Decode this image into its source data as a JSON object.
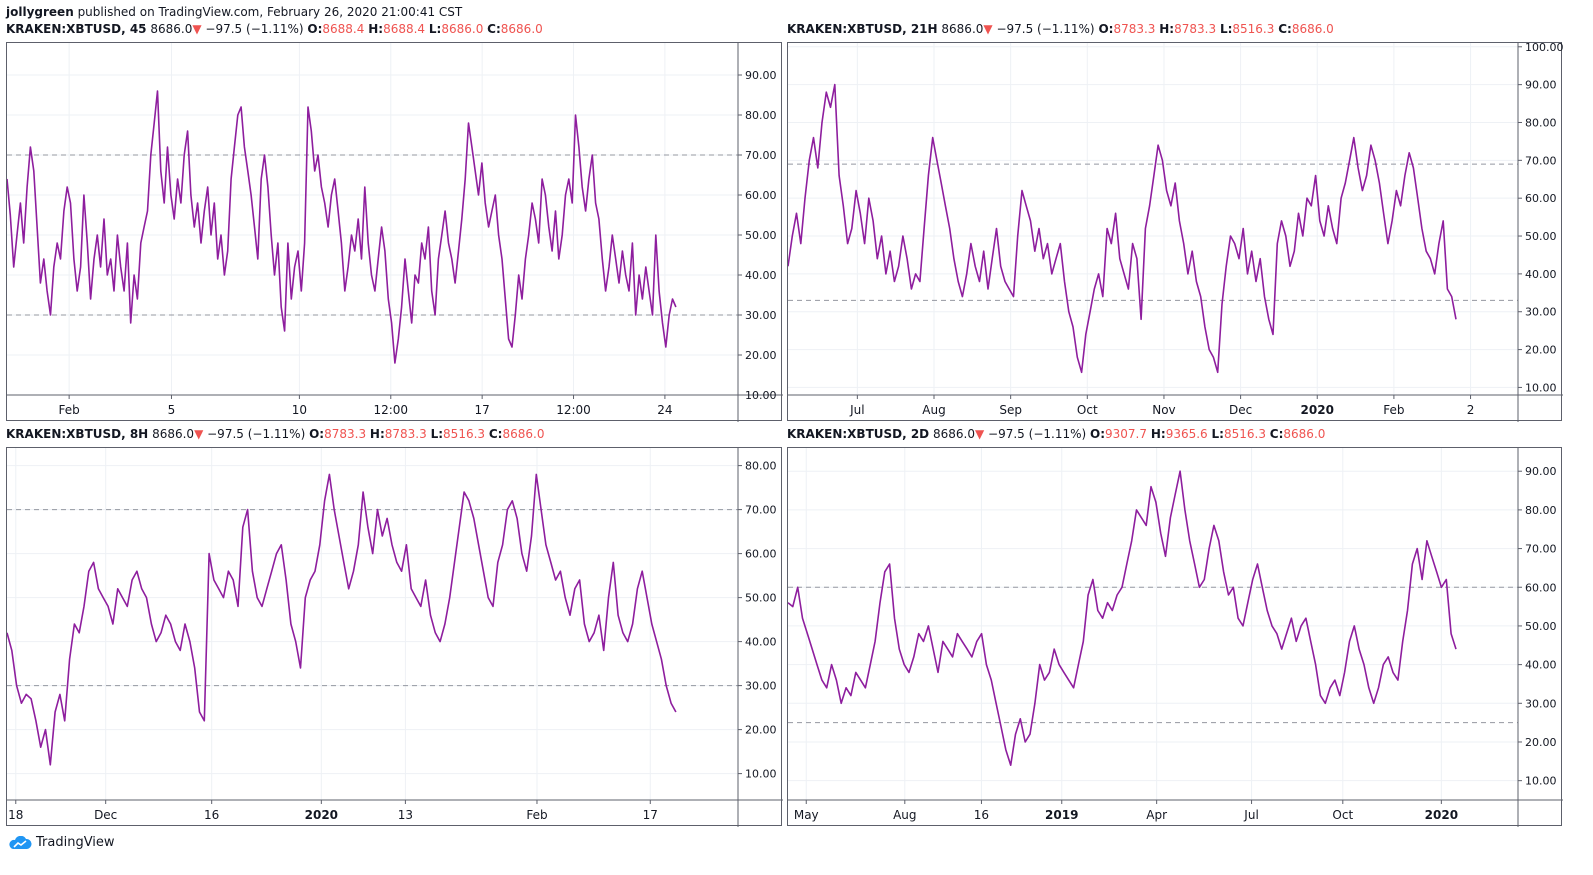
{
  "header": {
    "author": "jollygreen",
    "published": "published on TradingView.com, February 26, 2020 21:00:41 CST"
  },
  "footer": {
    "brand": "TradingView",
    "logo_icon": "tradingview-cloud-icon"
  },
  "colors": {
    "line": "#8e1e9e",
    "down": "#ef5350",
    "grid": "#eef1f5",
    "band": "#9598a1"
  },
  "panes": [
    {
      "symbol": "KRAKEN:XBTUSD, 45",
      "price": "8686.0",
      "change": "−97.5 (−1.11%)",
      "ohlc": [
        {
          "k": "O:",
          "v": "8688.4"
        },
        {
          "k": "H:",
          "v": "8688.4"
        },
        {
          "k": "L:",
          "v": "8686.0"
        },
        {
          "k": "C:",
          "v": "8686.0"
        }
      ]
    },
    {
      "symbol": "KRAKEN:XBTUSD, 21H",
      "price": "8686.0",
      "change": "−97.5 (−1.11%)",
      "ohlc": [
        {
          "k": "O:",
          "v": "8783.3"
        },
        {
          "k": "H:",
          "v": "8783.3"
        },
        {
          "k": "L:",
          "v": "8516.3"
        },
        {
          "k": "C:",
          "v": "8686.0"
        }
      ]
    },
    {
      "symbol": "KRAKEN:XBTUSD, 8H",
      "price": "8686.0",
      "change": "−97.5 (−1.11%)",
      "ohlc": [
        {
          "k": "O:",
          "v": "8783.3"
        },
        {
          "k": "H:",
          "v": "8783.3"
        },
        {
          "k": "L:",
          "v": "8516.3"
        },
        {
          "k": "C:",
          "v": "8686.0"
        }
      ]
    },
    {
      "symbol": "KRAKEN:XBTUSD, 2D",
      "price": "8686.0",
      "change": "−97.5 (−1.11%)",
      "ohlc": [
        {
          "k": "O:",
          "v": "9307.7"
        },
        {
          "k": "H:",
          "v": "9365.6"
        },
        {
          "k": "L:",
          "v": "8516.3"
        },
        {
          "k": "C:",
          "v": "8686.0"
        }
      ]
    }
  ],
  "chart_data": [
    {
      "type": "line",
      "ylim": [
        10,
        98
      ],
      "yticks": [
        "10.00",
        "20.00",
        "30.00",
        "40.00",
        "50.00",
        "60.00",
        "70.00",
        "80.00",
        "90.00"
      ],
      "xticks": [
        {
          "label": "Feb",
          "t": 0.085,
          "bold": false
        },
        {
          "label": "5",
          "t": 0.225,
          "bold": false
        },
        {
          "label": "10",
          "t": 0.4,
          "bold": false
        },
        {
          "label": "12:00",
          "t": 0.525,
          "bold": false
        },
        {
          "label": "17",
          "t": 0.65,
          "bold": false
        },
        {
          "label": "12:00",
          "t": 0.775,
          "bold": false
        },
        {
          "label": "24",
          "t": 0.9,
          "bold": false
        }
      ],
      "bands": [
        70,
        30
      ],
      "values": [
        64,
        55,
        42,
        50,
        58,
        48,
        62,
        72,
        66,
        52,
        38,
        44,
        36,
        30,
        42,
        48,
        44,
        56,
        62,
        58,
        44,
        36,
        42,
        60,
        48,
        34,
        44,
        50,
        42,
        54,
        40,
        44,
        36,
        50,
        42,
        36,
        48,
        28,
        40,
        34,
        48,
        52,
        56,
        70,
        78,
        86,
        66,
        58,
        72,
        60,
        54,
        64,
        58,
        70,
        76,
        60,
        52,
        58,
        48,
        56,
        62,
        50,
        58,
        44,
        50,
        40,
        46,
        64,
        72,
        80,
        82,
        72,
        66,
        60,
        52,
        44,
        64,
        70,
        62,
        50,
        40,
        48,
        32,
        26,
        48,
        34,
        42,
        46,
        36,
        48,
        82,
        76,
        66,
        70,
        62,
        58,
        52,
        60,
        64,
        56,
        48,
        36,
        42,
        50,
        46,
        54,
        44,
        62,
        48,
        40,
        36,
        44,
        52,
        46,
        34,
        28,
        18,
        24,
        32,
        44,
        36,
        28,
        40,
        38,
        48,
        44,
        52,
        36,
        30,
        44,
        50,
        56,
        48,
        44,
        38,
        46,
        54,
        64,
        78,
        72,
        66,
        60,
        68,
        58,
        52,
        56,
        60,
        50,
        44,
        34,
        24,
        22,
        30,
        40,
        34,
        44,
        50,
        58,
        54,
        48,
        64,
        60,
        52,
        46,
        56,
        44,
        50,
        60,
        64,
        58,
        80,
        72,
        62,
        56,
        64,
        70,
        58,
        54,
        44,
        36,
        42,
        50,
        44,
        38,
        46,
        40,
        36,
        48,
        30,
        40,
        34,
        42,
        36,
        30,
        50,
        36,
        28,
        22,
        30,
        34,
        32
      ],
      "title": "",
      "xlabel": "",
      "ylabel": "",
      "grid": true
    },
    {
      "type": "line",
      "ylim": [
        8,
        101
      ],
      "yticks": [
        "10.00",
        "20.00",
        "30.00",
        "40.00",
        "50.00",
        "60.00",
        "70.00",
        "80.00",
        "90.00",
        "100.00"
      ],
      "xticks": [
        {
          "label": "Jul",
          "t": 0.095,
          "bold": false
        },
        {
          "label": "Aug",
          "t": 0.2,
          "bold": false
        },
        {
          "label": "Sep",
          "t": 0.305,
          "bold": false
        },
        {
          "label": "Oct",
          "t": 0.41,
          "bold": false
        },
        {
          "label": "Nov",
          "t": 0.515,
          "bold": false
        },
        {
          "label": "Dec",
          "t": 0.62,
          "bold": false
        },
        {
          "label": "2020",
          "t": 0.725,
          "bold": true
        },
        {
          "label": "Feb",
          "t": 0.83,
          "bold": false
        },
        {
          "label": "2",
          "t": 0.935,
          "bold": false
        }
      ],
      "bands": [
        69,
        33
      ],
      "values": [
        42,
        50,
        56,
        48,
        60,
        70,
        76,
        68,
        80,
        88,
        84,
        90,
        66,
        58,
        48,
        52,
        62,
        56,
        48,
        60,
        54,
        44,
        50,
        40,
        46,
        38,
        42,
        50,
        44,
        36,
        40,
        38,
        52,
        66,
        76,
        70,
        64,
        58,
        52,
        44,
        38,
        34,
        40,
        48,
        42,
        38,
        46,
        36,
        44,
        52,
        42,
        38,
        36,
        34,
        50,
        62,
        58,
        54,
        46,
        52,
        44,
        48,
        40,
        44,
        48,
        38,
        30,
        26,
        18,
        14,
        24,
        30,
        36,
        40,
        34,
        52,
        48,
        56,
        44,
        40,
        36,
        48,
        44,
        28,
        52,
        58,
        66,
        74,
        70,
        62,
        58,
        64,
        54,
        48,
        40,
        46,
        38,
        34,
        26,
        20,
        18,
        14,
        32,
        42,
        50,
        48,
        44,
        52,
        40,
        46,
        38,
        44,
        34,
        28,
        24,
        48,
        54,
        50,
        42,
        46,
        56,
        50,
        60,
        58,
        66,
        54,
        50,
        58,
        52,
        48,
        60,
        64,
        70,
        76,
        68,
        62,
        66,
        74,
        70,
        64,
        56,
        48,
        54,
        62,
        58,
        66,
        72,
        68,
        60,
        52,
        46,
        44,
        40,
        48,
        54,
        36,
        34,
        28
      ],
      "title": "",
      "xlabel": "",
      "ylabel": "",
      "grid": true
    },
    {
      "type": "line",
      "ylim": [
        4,
        84
      ],
      "yticks": [
        "10.00",
        "20.00",
        "30.00",
        "40.00",
        "50.00",
        "60.00",
        "70.00",
        "80.00"
      ],
      "xticks": [
        {
          "label": "18",
          "t": 0.012,
          "bold": false
        },
        {
          "label": "Dec",
          "t": 0.135,
          "bold": false
        },
        {
          "label": "16",
          "t": 0.28,
          "bold": false
        },
        {
          "label": "2020",
          "t": 0.43,
          "bold": true
        },
        {
          "label": "13",
          "t": 0.545,
          "bold": false
        },
        {
          "label": "Feb",
          "t": 0.725,
          "bold": false
        },
        {
          "label": "17",
          "t": 0.88,
          "bold": false
        }
      ],
      "bands": [
        70,
        30
      ],
      "values": [
        42,
        38,
        30,
        26,
        28,
        27,
        22,
        16,
        20,
        12,
        24,
        28,
        22,
        36,
        44,
        42,
        48,
        56,
        58,
        52,
        50,
        48,
        44,
        52,
        50,
        48,
        54,
        56,
        52,
        50,
        44,
        40,
        42,
        46,
        44,
        40,
        38,
        44,
        40,
        34,
        24,
        22,
        60,
        54,
        52,
        50,
        56,
        54,
        48,
        66,
        70,
        56,
        50,
        48,
        52,
        56,
        60,
        62,
        54,
        44,
        40,
        34,
        50,
        54,
        56,
        62,
        72,
        78,
        70,
        64,
        58,
        52,
        56,
        62,
        74,
        66,
        60,
        70,
        64,
        68,
        62,
        58,
        56,
        62,
        52,
        50,
        48,
        54,
        46,
        42,
        40,
        44,
        50,
        58,
        66,
        74,
        72,
        68,
        62,
        56,
        50,
        48,
        58,
        62,
        70,
        72,
        68,
        60,
        56,
        64,
        78,
        70,
        62,
        58,
        54,
        56,
        50,
        46,
        52,
        54,
        44,
        40,
        42,
        46,
        38,
        50,
        58,
        46,
        42,
        40,
        44,
        52,
        56,
        50,
        44,
        40,
        36,
        30,
        26,
        24
      ],
      "title": "",
      "xlabel": "",
      "ylabel": "",
      "grid": true
    },
    {
      "type": "line",
      "ylim": [
        5,
        96
      ],
      "yticks": [
        "10.00",
        "20.00",
        "30.00",
        "40.00",
        "50.00",
        "60.00",
        "70.00",
        "80.00",
        "90.00"
      ],
      "xticks": [
        {
          "label": "May",
          "t": 0.025,
          "bold": false
        },
        {
          "label": "Aug",
          "t": 0.16,
          "bold": false
        },
        {
          "label": "16",
          "t": 0.265,
          "bold": false
        },
        {
          "label": "2019",
          "t": 0.375,
          "bold": true
        },
        {
          "label": "Apr",
          "t": 0.505,
          "bold": false
        },
        {
          "label": "Jul",
          "t": 0.635,
          "bold": false
        },
        {
          "label": "Oct",
          "t": 0.76,
          "bold": false
        },
        {
          "label": "2020",
          "t": 0.895,
          "bold": true
        }
      ],
      "bands": [
        60,
        25
      ],
      "values": [
        56,
        55,
        60,
        52,
        48,
        44,
        40,
        36,
        34,
        40,
        36,
        30,
        34,
        32,
        38,
        36,
        34,
        40,
        46,
        56,
        64,
        66,
        52,
        44,
        40,
        38,
        42,
        48,
        46,
        50,
        44,
        38,
        46,
        44,
        42,
        48,
        46,
        44,
        42,
        46,
        48,
        40,
        36,
        30,
        24,
        18,
        14,
        22,
        26,
        20,
        22,
        30,
        40,
        36,
        38,
        44,
        40,
        38,
        36,
        34,
        40,
        46,
        58,
        62,
        54,
        52,
        56,
        54,
        58,
        60,
        66,
        72,
        80,
        78,
        76,
        86,
        82,
        74,
        68,
        78,
        84,
        90,
        80,
        72,
        66,
        60,
        62,
        70,
        76,
        72,
        64,
        58,
        60,
        52,
        50,
        56,
        62,
        66,
        60,
        54,
        50,
        48,
        44,
        48,
        52,
        46,
        50,
        52,
        46,
        40,
        32,
        30,
        34,
        36,
        32,
        38,
        46,
        50,
        44,
        40,
        34,
        30,
        34,
        40,
        42,
        38,
        36,
        46,
        54,
        66,
        70,
        62,
        72,
        68,
        64,
        60,
        62,
        48,
        44
      ],
      "title": "",
      "xlabel": "",
      "ylabel": "",
      "grid": true
    }
  ]
}
